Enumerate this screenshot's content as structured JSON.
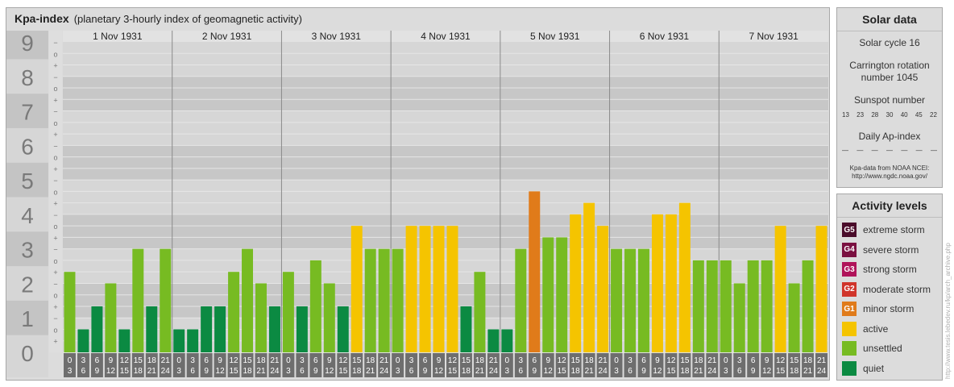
{
  "header": {
    "title": "Kpa-index",
    "subtitle": "(planetary 3-hourly index of geomagnetic activity)"
  },
  "chart_data": {
    "type": "bar",
    "ylim": [
      0,
      9
    ],
    "y_ticks": [
      "0",
      "1",
      "2",
      "3",
      "4",
      "5",
      "6",
      "7",
      "8",
      "9"
    ],
    "minor_marks": [
      "+",
      "o",
      "−"
    ],
    "days": [
      "1 Nov 1931",
      "2 Nov 1931",
      "3 Nov 1931",
      "4 Nov 1931",
      "5 Nov 1931",
      "6 Nov 1931",
      "7 Nov 1931"
    ],
    "interval_start": [
      "0",
      "3",
      "6",
      "9",
      "12",
      "15",
      "18",
      "21"
    ],
    "interval_end": [
      "3",
      "6",
      "9",
      "12",
      "15",
      "18",
      "21",
      "24"
    ],
    "values": [
      2.333,
      0.667,
      1.333,
      2.0,
      0.667,
      3.0,
      1.333,
      3.0,
      0.667,
      0.667,
      1.333,
      1.333,
      2.333,
      3.0,
      2.0,
      1.333,
      2.333,
      1.333,
      2.667,
      2.0,
      1.333,
      3.667,
      3.0,
      3.0,
      3.0,
      3.667,
      3.667,
      3.667,
      3.667,
      1.333,
      2.333,
      0.667,
      0.667,
      3.0,
      4.667,
      3.333,
      3.333,
      4.0,
      4.333,
      3.667,
      3.0,
      3.0,
      3.0,
      4.0,
      4.0,
      4.333,
      2.667,
      2.667,
      2.667,
      2.0,
      2.667,
      2.667,
      3.667,
      2.0,
      2.667,
      3.667
    ]
  },
  "solar_data": {
    "title": "Solar data",
    "solar_cycle": "Solar cycle 16",
    "carrington_line1": "Carrington rotation",
    "carrington_line2": "number 1045",
    "sunspot_label": "Sunspot number",
    "sunspot_values": [
      "13",
      "23",
      "28",
      "30",
      "40",
      "45",
      "22"
    ],
    "ap_label": "Daily Ap-index",
    "ap_values": [
      "—",
      "—",
      "—",
      "—",
      "—",
      "—",
      "—"
    ],
    "source_line1": "Kpa-data from NOAA NCEI:",
    "source_line2": "http://www.ngdc.noaa.gov/"
  },
  "activity_levels": {
    "title": "Activity levels",
    "items": [
      {
        "code": "G5",
        "label": "extreme storm",
        "color": "#4a0c2a"
      },
      {
        "code": "G4",
        "label": "severe storm",
        "color": "#7a1040"
      },
      {
        "code": "G3",
        "label": "strong storm",
        "color": "#b0135a"
      },
      {
        "code": "G2",
        "label": "moderate storm",
        "color": "#d0342a"
      },
      {
        "code": "G1",
        "label": "minor storm",
        "color": "#e07b1a"
      },
      {
        "code": "",
        "label": "active",
        "color": "#f5c400"
      },
      {
        "code": "",
        "label": "unsettled",
        "color": "#77bb22"
      },
      {
        "code": "",
        "label": "quiet",
        "color": "#0b8a42"
      }
    ]
  },
  "credit": "http://www.tesis.lebedev.ru/kp/arch_archive.php"
}
